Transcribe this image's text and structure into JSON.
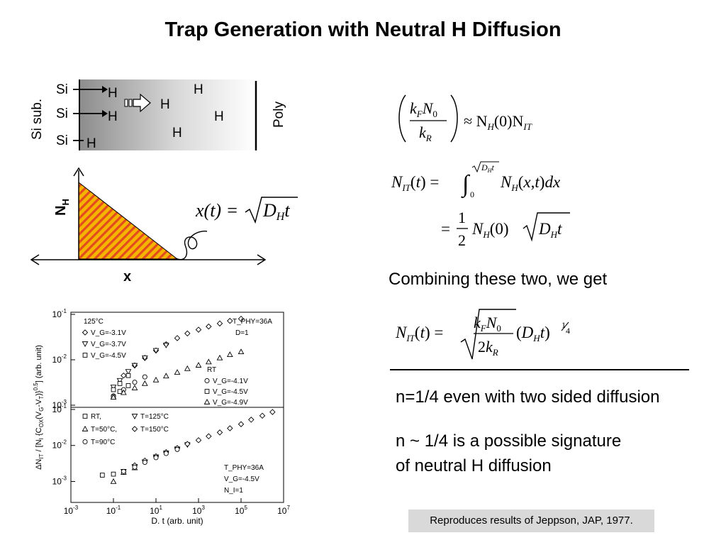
{
  "slide": {
    "title": "Trap Generation with Neutral H Diffusion",
    "combining_text": "Combining these two, we get",
    "result_text": "n=1/4 even with two sided diffusion",
    "signature_line1": "n ~ 1/4 is a possible signature",
    "signature_line2": "of neutral H diffusion",
    "footer": "Reproduces results of Jeppson, JAP, 1977."
  },
  "schematic": {
    "si_sub_label": "Si sub.",
    "poly_label": "Poly",
    "si_label": "Si",
    "h_label": "H"
  },
  "profile": {
    "y_label": "N",
    "y_label_sub": "H",
    "x_label": "x",
    "equation": {
      "lhs": "x(t) =",
      "radicand": "D",
      "radicand_sub": "H",
      "radicand_t": "t"
    }
  },
  "equations": {
    "eq1_rhs": "≈ N",
    "eq1_rhs_sub1": "H",
    "eq1_rhs_mid": "(0)N",
    "eq1_rhs_sub2": "IT"
  },
  "chart_data": {
    "type": "scatter",
    "xlabel": "D. t (arb. unit)",
    "ylabel": "ΔN_IT / [N_I {C_OX(V_G-V_T)}^0.5] (arb. unit)",
    "x_ticks": [
      "10-3",
      "10-1",
      "101",
      "103",
      "105",
      "107"
    ],
    "x_scale": "log",
    "xlim": [
      0.001,
      10000000
    ],
    "panels": [
      {
        "ylim": [
          0.001,
          0.1
        ],
        "y_ticks": [
          "10-3",
          "10-2",
          "10-1"
        ],
        "y_scale": "log",
        "annotations": [
          "125°C",
          "T_PHY=36A",
          "D=1",
          "RT"
        ],
        "series": [
          {
            "name": "V_G=-3.1V",
            "marker": "diamond",
            "x": [
              0.3,
              1,
              3,
              10,
              30,
              100,
              300,
              1000,
              3000,
              10000,
              30000,
              100000
            ],
            "y": [
              0.0045,
              0.0075,
              0.011,
              0.016,
              0.022,
              0.03,
              0.038,
              0.046,
              0.054,
              0.063,
              0.072,
              0.08
            ]
          },
          {
            "name": "V_G=-3.7V",
            "marker": "triangle-down",
            "x": [
              0.1,
              0.2,
              0.5,
              1,
              3,
              10,
              30
            ],
            "y": [
              0.0025,
              0.0035,
              0.0055,
              0.0075,
              0.011,
              0.016,
              0.021
            ]
          },
          {
            "name": "V_G=-4.5V",
            "marker": "square",
            "x": [
              0.1,
              0.2,
              0.5
            ],
            "y": [
              0.0022,
              0.003,
              0.0045
            ]
          },
          {
            "name": "V_G=-4.1V",
            "marker": "circle",
            "x": [
              0.1,
              0.3,
              1,
              3
            ],
            "y": [
              0.0016,
              0.0022,
              0.0032,
              0.0042
            ]
          },
          {
            "name": "V_G=-4.5V",
            "marker": "square",
            "x": [
              0.1,
              0.2,
              0.5
            ],
            "y": [
              0.0015,
              0.002,
              0.0027
            ]
          },
          {
            "name": "V_G=-4.9V",
            "marker": "triangle-up",
            "x": [
              0.1,
              0.3,
              1,
              3,
              10,
              30,
              100,
              300,
              1000,
              3000,
              10000,
              30000,
              100000
            ],
            "y": [
              0.0015,
              0.0019,
              0.0024,
              0.003,
              0.0036,
              0.0044,
              0.0053,
              0.0064,
              0.0076,
              0.009,
              0.011,
              0.013,
              0.015
            ]
          }
        ]
      },
      {
        "ylim": [
          0.0003,
          0.1
        ],
        "y_ticks": [
          "10-3",
          "10-2",
          "10-1"
        ],
        "y_scale": "log",
        "annotations": [
          "T_PHY=36A",
          "V_G=-4.5V",
          "N_I=1"
        ],
        "series": [
          {
            "name": "RT,",
            "marker": "square",
            "x": [
              0.03,
              0.1,
              0.3
            ],
            "y": [
              0.0015,
              0.0016,
              0.0018
            ]
          },
          {
            "name": "T=125°C",
            "marker": "triangle-down",
            "x": [
              0.3,
              1,
              3,
              10,
              30,
              100,
              300
            ],
            "y": [
              0.0019,
              0.0026,
              0.0035,
              0.0048,
              0.0062,
              0.008,
              0.0105
            ]
          },
          {
            "name": "T=50°C,",
            "marker": "triangle-up",
            "x": [
              0.1,
              0.3,
              1
            ],
            "y": [
              0.001,
              0.0018,
              0.0024
            ]
          },
          {
            "name": "T=150°C",
            "marker": "diamond",
            "x": [
              1,
              3,
              10,
              30,
              100,
              300,
              1000,
              3000,
              10000,
              30000,
              100000,
              300000,
              1000000,
              3000000
            ],
            "y": [
              0.0028,
              0.0038,
              0.005,
              0.0065,
              0.0085,
              0.011,
              0.014,
              0.018,
              0.023,
              0.03,
              0.039,
              0.052,
              0.067,
              0.085
            ]
          },
          {
            "name": "T=90°C",
            "marker": "circle",
            "x": [
              0.3,
              1,
              3,
              10,
              30,
              100
            ],
            "y": [
              0.0019,
              0.0025,
              0.0034,
              0.0046,
              0.006,
              0.0078
            ]
          }
        ]
      }
    ]
  }
}
